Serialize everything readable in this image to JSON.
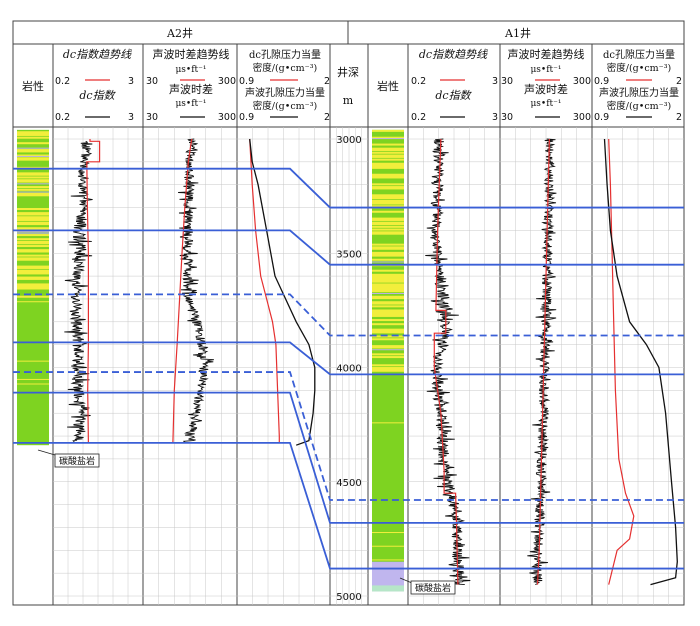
{
  "wells": {
    "a2": {
      "title": "A2井"
    },
    "a1": {
      "title": "A1井"
    }
  },
  "headers": {
    "lithology": "岩性",
    "dc_trend": "dc指数趋势线",
    "dc_index": "dc指数",
    "sonic_trend": "声波时差趋势线",
    "sonic_unit": "μs•ft⁻¹",
    "sonic": "声波时差",
    "pore_trend_l1": "dc孔隙压力当量",
    "pore_trend_l2": "密度/(g•cm⁻³)",
    "pore_sonic_l1": "声波孔隙压力当量",
    "pore_sonic_l2": "密度/(g•cm⁻³)",
    "depth_label": "井深",
    "depth_unit": "m"
  },
  "scales": {
    "dc": {
      "min": "0.2",
      "max": "3"
    },
    "sonic": {
      "min": "30",
      "max": "300"
    },
    "pressure": {
      "min": "0.9",
      "max": "2"
    }
  },
  "annotations": {
    "carbonate_a2": "碳酸盐岩",
    "carbonate_a1": "碳酸盐岩"
  },
  "colors": {
    "trend": "#e53030",
    "measured": "#111111",
    "correlation": "#3a5fd6",
    "lith_green": "#7ed321",
    "lith_yellow": "#f2ee3c",
    "lith_purple": "#c0b6ee",
    "grid": "#c8c8c8"
  },
  "chart_data": {
    "type": "line",
    "depth_axis": {
      "label": "井深",
      "unit": "m",
      "range": [
        2950,
        5030
      ],
      "ticks": [
        3000,
        3500,
        4000,
        4500,
        5000
      ]
    },
    "tracks": [
      "dc指数趋势线 / dc指数",
      "声波时差趋势线 / 声波时差",
      "dc孔隙压力当量密度 / 声波孔隙压力当量密度"
    ],
    "a2": {
      "dc_trend": {
        "depth": [
          3000,
          3010,
          3010,
          3100,
          3100,
          3300,
          3500,
          3700,
          3900,
          4100,
          4330
        ],
        "values": [
          1.35,
          1.35,
          1.65,
          1.65,
          1.25,
          1.27,
          1.3,
          1.3,
          1.3,
          1.28,
          1.3
        ]
      },
      "dc_index": {
        "depth": [
          3010,
          3100,
          3200,
          3300,
          3400,
          3500,
          3600,
          3700,
          3800,
          3900,
          4000,
          4100,
          4200,
          4330
        ],
        "values": [
          1.25,
          1.2,
          1.1,
          1.15,
          1.0,
          1.05,
          0.95,
          0.95,
          0.9,
          1.0,
          0.95,
          1.0,
          1.05,
          1.0
        ]
      },
      "sonic_trend": {
        "depth": [
          3000,
          3100,
          3300,
          3500,
          3700,
          3900,
          4100,
          4330
        ],
        "values": [
          170,
          160,
          150,
          142,
          135,
          128,
          120,
          116
        ]
      },
      "sonic": {
        "depth": [
          3000,
          3100,
          3300,
          3500,
          3700,
          3800,
          3900,
          4000,
          4100,
          4200,
          4330
        ],
        "values": [
          172,
          165,
          160,
          158,
          160,
          185,
          200,
          205,
          195,
          180,
          160
        ]
      },
      "pressure_trend": {
        "depth": [
          3000,
          3200,
          3400,
          3600,
          3700,
          3800,
          3900,
          4100,
          4300,
          4330
        ],
        "values": [
          1.05,
          1.08,
          1.12,
          1.18,
          1.25,
          1.32,
          1.36,
          1.38,
          1.4,
          1.4
        ]
      },
      "pressure_sonic": {
        "depth": [
          3000,
          3100,
          3200,
          3400,
          3600,
          3800,
          3900,
          4000,
          4100,
          4200,
          4320,
          4340
        ],
        "values": [
          1.05,
          1.08,
          1.15,
          1.25,
          1.35,
          1.6,
          1.75,
          1.82,
          1.82,
          1.8,
          1.75,
          1.6
        ]
      },
      "lithology": {
        "depth": [
          3000,
          3200,
          3400,
          3690,
          4030,
          4340
        ],
        "type": [
          "mixed",
          "mixed",
          "mixed",
          "clastic",
          "clastic"
        ]
      }
    },
    "a1": {
      "dc_trend": {
        "depth": [
          3000,
          3200,
          3400,
          3750,
          3750,
          3850,
          3850,
          4000,
          4200,
          4450,
          4450,
          4550,
          4550,
          4700,
          4950
        ],
        "values": [
          1.2,
          1.15,
          1.1,
          1.05,
          1.35,
          1.35,
          1.0,
          1.0,
          1.2,
          1.3,
          1.3,
          1.3,
          1.65,
          1.68,
          1.72
        ]
      },
      "dc_index": {
        "depth": [
          3000,
          3200,
          3500,
          3750,
          3850,
          4000,
          4200,
          4450,
          4650,
          4800,
          4950
        ],
        "values": [
          1.15,
          1.1,
          1.05,
          1.35,
          1.35,
          1.05,
          1.2,
          1.3,
          1.7,
          1.7,
          1.75
        ]
      },
      "sonic_trend": {
        "depth": [
          3000,
          3300,
          3600,
          3900,
          4200,
          4500,
          4800,
          4950
        ],
        "values": [
          175,
          170,
          165,
          160,
          155,
          150,
          145,
          140
        ]
      },
      "sonic": {
        "depth": [
          3000,
          3200,
          3500,
          3800,
          4000,
          4200,
          4500,
          4700,
          4850,
          4950
        ],
        "values": [
          178,
          175,
          170,
          165,
          160,
          158,
          150,
          145,
          140,
          140
        ]
      },
      "pressure_trend": {
        "depth": [
          3000,
          3200,
          3500,
          3800,
          4100,
          4400,
          4550,
          4650,
          4750,
          4800,
          4950
        ],
        "values": [
          1.1,
          1.12,
          1.14,
          1.16,
          1.18,
          1.22,
          1.3,
          1.4,
          1.35,
          1.2,
          1.1
        ]
      },
      "pressure_sonic": {
        "depth": [
          3000,
          3200,
          3400,
          3600,
          3800,
          3900,
          4000,
          4200,
          4500,
          4700,
          4850,
          4920,
          4950
        ],
        "values": [
          1.05,
          1.08,
          1.12,
          1.2,
          1.35,
          1.55,
          1.7,
          1.78,
          1.85,
          1.9,
          1.92,
          1.9,
          1.6
        ]
      },
      "lithology": {
        "depth": [
          3000,
          4850,
          4980
        ],
        "type": [
          "clastic",
          "carbonate"
        ]
      }
    },
    "correlation": {
      "solid": [
        [
          3130,
          3300
        ],
        [
          3400,
          3550
        ],
        [
          3890,
          4030
        ],
        [
          4110,
          4680
        ],
        [
          4330,
          4880
        ]
      ],
      "dashed": [
        [
          3680,
          3860
        ],
        [
          4020,
          4580
        ]
      ]
    }
  }
}
